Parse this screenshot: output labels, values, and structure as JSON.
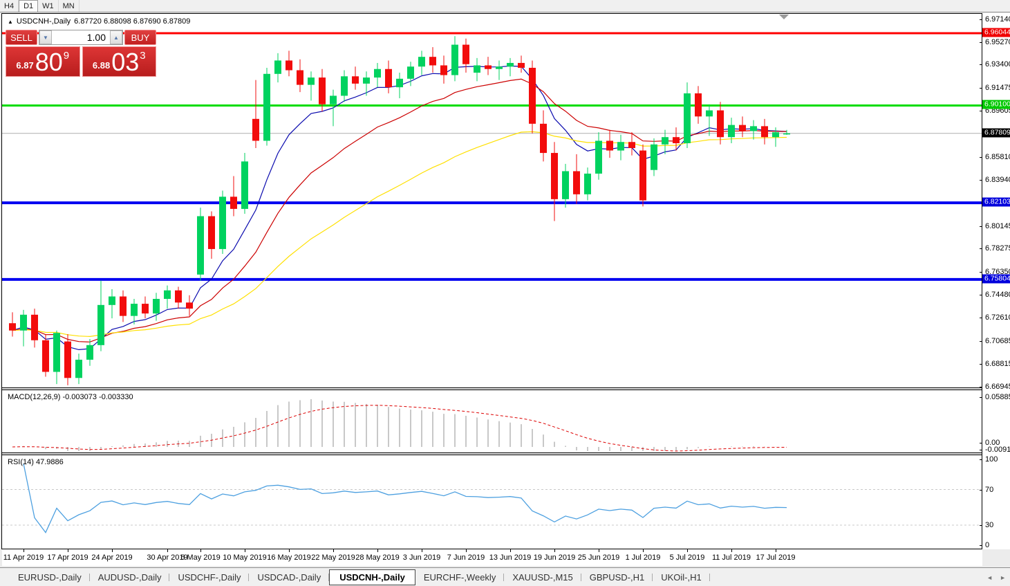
{
  "toolbar": {
    "timeframes": [
      "H4",
      "D1",
      "W1",
      "MN"
    ],
    "active": "D1"
  },
  "chart": {
    "title": {
      "icon": "▲",
      "symbol": "USDCNH-,Daily",
      "ohlc": "6.87720 6.88098 6.87690 6.87809"
    },
    "trade": {
      "sell_label": "SELL",
      "buy_label": "BUY",
      "volume": "1.00",
      "sell_price": {
        "prefix": "6.87",
        "big": "80",
        "sup": "9"
      },
      "buy_price": {
        "prefix": "6.88",
        "big": "03",
        "sup": "3"
      }
    },
    "price_axis_ticks": [
      6.9714,
      6.9527,
      6.934,
      6.91475,
      6.89605,
      6.8581,
      6.8394,
      6.80145,
      6.78275,
      6.7635,
      6.7448,
      6.7261,
      6.70685,
      6.68815,
      6.66945
    ],
    "badges": [
      {
        "label": "6.96044",
        "price": 6.96044,
        "color": "#f00000"
      },
      {
        "label": "6.90100",
        "price": 6.901,
        "color": "#00c800"
      },
      {
        "label": "6.87809",
        "price": 6.87809,
        "color": "#000000"
      },
      {
        "label": "6.82103",
        "price": 6.82103,
        "color": "#0000dc"
      },
      {
        "label": "6.75804",
        "price": 6.75804,
        "color": "#0000dc"
      }
    ],
    "hlines": [
      {
        "price": 6.96044,
        "color": "#ff0000",
        "w": 3
      },
      {
        "price": 6.901,
        "color": "#00dc00",
        "w": 3
      },
      {
        "price": 6.82103,
        "color": "#0000f0",
        "w": 4
      },
      {
        "price": 6.75804,
        "color": "#0000f0",
        "w": 4
      }
    ],
    "current_price": 6.87809,
    "ma_periods": [
      8,
      17,
      38
    ],
    "candles": [
      [
        6.722,
        6.731,
        6.711,
        6.716
      ],
      [
        6.716,
        6.733,
        6.703,
        6.729
      ],
      [
        6.729,
        6.734,
        6.702,
        6.708
      ],
      [
        6.708,
        6.713,
        6.678,
        6.682
      ],
      [
        6.682,
        6.716,
        6.672,
        6.714
      ],
      [
        6.707,
        6.713,
        6.671,
        6.677
      ],
      [
        6.677,
        6.697,
        6.672,
        6.692
      ],
      [
        6.692,
        6.709,
        6.687,
        6.704
      ],
      [
        6.704,
        6.757,
        6.699,
        6.737
      ],
      [
        6.737,
        6.75,
        6.726,
        6.744
      ],
      [
        6.744,
        6.749,
        6.723,
        6.728
      ],
      [
        6.728,
        6.742,
        6.721,
        6.738
      ],
      [
        6.738,
        6.744,
        6.726,
        6.73
      ],
      [
        6.73,
        6.747,
        6.724,
        6.742
      ],
      [
        6.742,
        6.753,
        6.734,
        6.749
      ],
      [
        6.749,
        6.752,
        6.734,
        6.739
      ],
      [
        6.739,
        6.745,
        6.728,
        6.734
      ],
      [
        6.762,
        6.817,
        6.757,
        6.81
      ],
      [
        6.81,
        6.814,
        6.775,
        6.783
      ],
      [
        6.783,
        6.831,
        6.779,
        6.826
      ],
      [
        6.826,
        6.843,
        6.81,
        6.816
      ],
      [
        6.816,
        6.862,
        6.812,
        6.855
      ],
      [
        6.89,
        6.922,
        6.866,
        6.872
      ],
      [
        6.872,
        6.932,
        6.868,
        6.927
      ],
      [
        6.927,
        6.944,
        6.92,
        6.938
      ],
      [
        6.938,
        6.946,
        6.925,
        6.93
      ],
      [
        6.93,
        6.939,
        6.912,
        6.918
      ],
      [
        6.918,
        6.929,
        6.905,
        6.924
      ],
      [
        6.924,
        6.931,
        6.896,
        6.902
      ],
      [
        6.902,
        6.914,
        6.884,
        6.909
      ],
      [
        6.909,
        6.93,
        6.904,
        6.925
      ],
      [
        6.925,
        6.933,
        6.914,
        6.919
      ],
      [
        6.919,
        6.929,
        6.909,
        6.924
      ],
      [
        6.924,
        6.936,
        6.916,
        6.931
      ],
      [
        6.931,
        6.938,
        6.911,
        6.916
      ],
      [
        6.916,
        6.928,
        6.907,
        6.923
      ],
      [
        6.923,
        6.937,
        6.917,
        6.933
      ],
      [
        6.933,
        6.946,
        6.926,
        6.941
      ],
      [
        6.941,
        6.949,
        6.928,
        6.934
      ],
      [
        6.934,
        6.942,
        6.919,
        6.926
      ],
      [
        6.926,
        6.958,
        6.921,
        6.951
      ],
      [
        6.951,
        6.956,
        6.928,
        6.935
      ],
      [
        6.928,
        6.94,
        6.921,
        6.934
      ],
      [
        6.934,
        6.941,
        6.926,
        6.931
      ],
      [
        6.931,
        6.938,
        6.922,
        6.933
      ],
      [
        6.933,
        6.94,
        6.925,
        6.936
      ],
      [
        6.936,
        6.942,
        6.928,
        6.932
      ],
      [
        6.932,
        6.938,
        6.878,
        6.886
      ],
      [
        6.886,
        6.897,
        6.855,
        6.862
      ],
      [
        6.862,
        6.871,
        6.806,
        6.824
      ],
      [
        6.824,
        6.853,
        6.817,
        6.847
      ],
      [
        6.847,
        6.861,
        6.82,
        6.828
      ],
      [
        6.828,
        6.85,
        6.823,
        6.845
      ],
      [
        6.845,
        6.879,
        6.84,
        6.872
      ],
      [
        6.872,
        6.881,
        6.858,
        6.864
      ],
      [
        6.864,
        6.877,
        6.856,
        6.871
      ],
      [
        6.871,
        6.879,
        6.86,
        6.866
      ],
      [
        6.864,
        6.869,
        6.818,
        6.823
      ],
      [
        6.848,
        6.874,
        6.843,
        6.869
      ],
      [
        6.869,
        6.881,
        6.861,
        6.875
      ],
      [
        6.875,
        6.883,
        6.864,
        6.87
      ],
      [
        6.87,
        6.92,
        6.866,
        6.911
      ],
      [
        6.911,
        6.917,
        6.886,
        6.892
      ],
      [
        6.892,
        6.902,
        6.876,
        6.897
      ],
      [
        6.897,
        6.904,
        6.869,
        6.875
      ],
      [
        6.875,
        6.891,
        6.87,
        6.885
      ],
      [
        6.885,
        6.892,
        6.875,
        6.88
      ],
      [
        6.88,
        6.889,
        6.873,
        6.884
      ],
      [
        6.884,
        6.89,
        6.869,
        6.875
      ],
      [
        6.875,
        6.883,
        6.867,
        6.879
      ],
      [
        6.8772,
        6.88098,
        6.8769,
        6.87809
      ]
    ],
    "date_labels": [
      {
        "t": "11 Apr 2019",
        "i": 1
      },
      {
        "t": "17 Apr 2019",
        "i": 5
      },
      {
        "t": "24 Apr 2019",
        "i": 9
      },
      {
        "t": "30 Apr 2019",
        "i": 14
      },
      {
        "t": "6 May 2019",
        "i": 17
      },
      {
        "t": "10 May 2019",
        "i": 21
      },
      {
        "t": "16 May 2019",
        "i": 25
      },
      {
        "t": "22 May 2019",
        "i": 29
      },
      {
        "t": "28 May 2019",
        "i": 33
      },
      {
        "t": "3 Jun 2019",
        "i": 37
      },
      {
        "t": "7 Jun 2019",
        "i": 41
      },
      {
        "t": "13 Jun 2019",
        "i": 45
      },
      {
        "t": "19 Jun 2019",
        "i": 49
      },
      {
        "t": "25 Jun 2019",
        "i": 53
      },
      {
        "t": "1 Jul 2019",
        "i": 57
      },
      {
        "t": "5 Jul 2019",
        "i": 61
      },
      {
        "t": "11 Jul 2019",
        "i": 65
      },
      {
        "t": "17 Jul 2019",
        "i": 69
      }
    ]
  },
  "macd": {
    "label": "MACD(12,26,9) -0.003073 -0.003330",
    "fast": 12,
    "slow": 26,
    "signal": 9,
    "axis_max": "0.058851",
    "axis_zero": "0.00",
    "axis_min": "-0.009116"
  },
  "rsi": {
    "label": "RSI(14) 47.9886",
    "period": 14,
    "axis": [
      "100",
      "70",
      "30",
      "0"
    ],
    "levels": [
      70,
      30
    ]
  },
  "tabs": {
    "items": [
      "EURUSD-,Daily",
      "AUDUSD-,Daily",
      "USDCHF-,Daily",
      "USDCAD-,Daily",
      "USDCNH-,Daily",
      "EURCHF-,Weekly",
      "XAUUSD-,M15",
      "GBPUSD-,H1",
      "UKOil-,H1"
    ],
    "active_index": 4
  },
  "icons": {
    "spinner_down": "▼",
    "spinner_up": "▲",
    "tab_scroll_left": "◄",
    "tab_scroll_right": "►"
  },
  "colors": {
    "candle_up": "#00d25f",
    "candle_down": "#f20c0c",
    "ma_fast": "#0a0aae",
    "ma_mid": "#cc0000",
    "ma_slow": "#ffe000",
    "current_price_line": "#adadad",
    "macd_hist": "#c8c8c8",
    "macd_signal": "#dd0000",
    "rsi_line": "#4da0e0",
    "rsi_level": "#c8c8c8"
  }
}
